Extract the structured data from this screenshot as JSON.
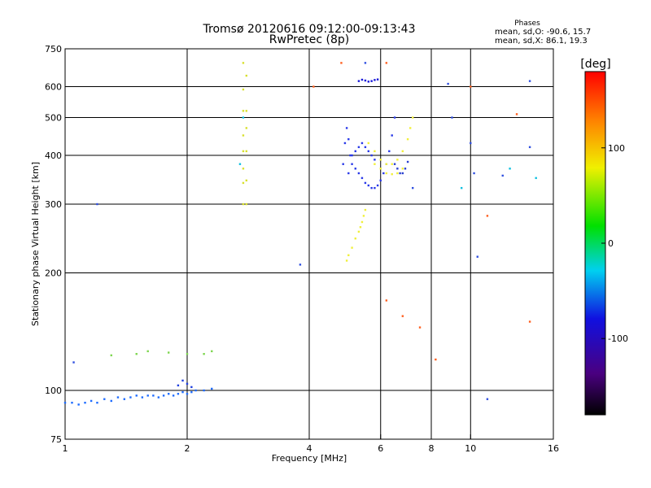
{
  "chart_data": {
    "type": "scatter",
    "title": "Tromsø 20120616 09:12:00-09:13:43",
    "subtitle": "RwPretec (8p)",
    "phase_info": {
      "heading": "Phases",
      "line_o": "mean, sd,O: -90.6, 15.7",
      "line_x": "mean, sd,X:  86.1, 19.3"
    },
    "xlabel": "Frequency [MHz]",
    "ylabel": "Stationary phase Virtual Height [km]",
    "x_scale": "log",
    "y_scale": "log",
    "xlim": [
      1,
      16
    ],
    "ylim": [
      75,
      750
    ],
    "x_ticks": [
      1,
      2,
      4,
      6,
      8,
      10,
      16
    ],
    "x_tick_labels": [
      "1",
      "2",
      "4",
      "6",
      "8",
      "10",
      "16"
    ],
    "x_grid": [
      2,
      4,
      6,
      8,
      10
    ],
    "y_ticks": [
      75,
      100,
      200,
      300,
      400,
      500,
      600,
      750
    ],
    "y_tick_labels": [
      "75",
      "100",
      "200",
      "300",
      "400",
      "500",
      "600",
      "750"
    ],
    "y_grid": [
      100,
      200,
      300,
      400,
      500,
      600
    ],
    "grid": true,
    "colorbar": {
      "label": "[deg]",
      "range": [
        -180,
        180
      ],
      "ticks": [
        100,
        0,
        -100
      ],
      "tick_labels": [
        "100",
        "0",
        "-100"
      ]
    },
    "series": [
      {
        "color": "#1e6cff",
        "points": [
          [
            1.0,
            93
          ],
          [
            1.04,
            93
          ],
          [
            1.08,
            92
          ],
          [
            1.12,
            93
          ],
          [
            1.16,
            94
          ],
          [
            1.2,
            93
          ],
          [
            1.25,
            95
          ],
          [
            1.3,
            94
          ],
          [
            1.35,
            96
          ],
          [
            1.4,
            95
          ],
          [
            1.45,
            96
          ],
          [
            1.5,
            97
          ],
          [
            1.55,
            96
          ],
          [
            1.6,
            97
          ],
          [
            1.65,
            97
          ],
          [
            1.7,
            96
          ],
          [
            1.75,
            97
          ],
          [
            1.8,
            98
          ],
          [
            1.85,
            97
          ],
          [
            1.9,
            98
          ],
          [
            1.95,
            99
          ],
          [
            2.0,
            98
          ],
          [
            2.05,
            99
          ],
          [
            2.1,
            100
          ],
          [
            2.2,
            100
          ],
          [
            2.3,
            101
          ]
        ]
      },
      {
        "color": "#2040e0",
        "points": [
          [
            1.9,
            103
          ],
          [
            1.95,
            106
          ],
          [
            2.0,
            104
          ],
          [
            2.05,
            102
          ]
        ]
      },
      {
        "color": "#2a3ae8",
        "points": [
          [
            4.85,
            380
          ],
          [
            4.9,
            430
          ],
          [
            4.95,
            470
          ],
          [
            5.0,
            440
          ],
          [
            5.05,
            400
          ],
          [
            5.1,
            380
          ],
          [
            5.2,
            370
          ],
          [
            5.3,
            360
          ],
          [
            5.4,
            350
          ],
          [
            5.5,
            340
          ],
          [
            5.6,
            335
          ],
          [
            5.7,
            330
          ],
          [
            5.8,
            330
          ],
          [
            5.9,
            335
          ],
          [
            6.0,
            345
          ],
          [
            6.1,
            360
          ],
          [
            6.2,
            380
          ],
          [
            6.3,
            410
          ],
          [
            6.4,
            450
          ],
          [
            6.5,
            500
          ],
          [
            5.0,
            360
          ],
          [
            5.1,
            400
          ],
          [
            5.2,
            410
          ],
          [
            5.3,
            420
          ],
          [
            5.4,
            430
          ],
          [
            5.5,
            420
          ],
          [
            5.6,
            410
          ],
          [
            5.7,
            400
          ],
          [
            5.8,
            390
          ]
        ]
      },
      {
        "color": "#1818d8",
        "points": [
          [
            5.3,
            620
          ],
          [
            5.4,
            625
          ],
          [
            5.5,
            622
          ],
          [
            5.6,
            618
          ],
          [
            5.7,
            620
          ],
          [
            5.8,
            624
          ],
          [
            5.9,
            626
          ]
        ]
      },
      {
        "color": "#2a40d0",
        "points": [
          [
            6.5,
            380
          ],
          [
            6.6,
            370
          ],
          [
            6.7,
            360
          ],
          [
            6.8,
            360
          ],
          [
            6.9,
            370
          ],
          [
            7.0,
            385
          ]
        ]
      },
      {
        "color": "#f2f03a",
        "points": [
          [
            5.6,
            430
          ],
          [
            5.8,
            410
          ],
          [
            6.0,
            390
          ],
          [
            6.2,
            380
          ],
          [
            6.4,
            380
          ],
          [
            6.6,
            390
          ],
          [
            6.8,
            410
          ],
          [
            7.0,
            440
          ],
          [
            7.1,
            470
          ],
          [
            7.2,
            500
          ],
          [
            5.8,
            380
          ],
          [
            6.0,
            370
          ],
          [
            6.2,
            360
          ],
          [
            6.4,
            358
          ],
          [
            6.6,
            360
          ],
          [
            6.8,
            370
          ]
        ]
      },
      {
        "color": "#f0f03a",
        "points": [
          [
            4.95,
            215
          ],
          [
            5.0,
            222
          ],
          [
            5.1,
            232
          ],
          [
            5.2,
            245
          ],
          [
            5.3,
            255
          ],
          [
            5.35,
            262
          ],
          [
            5.4,
            270
          ],
          [
            5.45,
            280
          ],
          [
            5.5,
            290
          ]
        ]
      },
      {
        "color": "#d8e030",
        "points": [
          [
            2.75,
            690
          ],
          [
            2.75,
            590
          ],
          [
            2.75,
            520
          ],
          [
            2.75,
            450
          ],
          [
            2.75,
            410
          ],
          [
            2.75,
            370
          ],
          [
            2.75,
            340
          ],
          [
            2.75,
            300
          ],
          [
            2.8,
            640
          ],
          [
            2.8,
            520
          ],
          [
            2.8,
            470
          ],
          [
            2.8,
            410
          ],
          [
            2.8,
            345
          ],
          [
            2.8,
            300
          ]
        ]
      },
      {
        "color": "#7ed650",
        "points": [
          [
            1.3,
            123
          ],
          [
            1.5,
            124
          ],
          [
            1.6,
            126
          ],
          [
            1.8,
            125
          ],
          [
            2.0,
            124
          ],
          [
            2.2,
            124
          ],
          [
            2.3,
            126
          ]
        ]
      },
      {
        "color": "#ff6020",
        "points": [
          [
            4.1,
            600
          ],
          [
            4.8,
            690
          ],
          [
            6.2,
            690
          ],
          [
            6.2,
            170
          ],
          [
            6.8,
            155
          ],
          [
            7.5,
            145
          ],
          [
            8.2,
            120
          ],
          [
            10.0,
            600
          ],
          [
            11.0,
            280
          ],
          [
            13.0,
            510
          ],
          [
            14.0,
            150
          ]
        ]
      },
      {
        "color": "#3050e0",
        "points": [
          [
            1.05,
            118
          ],
          [
            1.2,
            300
          ],
          [
            3.8,
            210
          ],
          [
            5.5,
            690
          ],
          [
            7.2,
            330
          ],
          [
            8.8,
            610
          ],
          [
            9.0,
            500
          ],
          [
            10.0,
            430
          ],
          [
            10.2,
            360
          ],
          [
            10.4,
            220
          ],
          [
            12.0,
            355
          ],
          [
            14.0,
            420
          ],
          [
            14.0,
            620
          ],
          [
            11.0,
            95
          ]
        ]
      },
      {
        "color": "#10c0e0",
        "points": [
          [
            2.7,
            380
          ],
          [
            2.75,
            500
          ],
          [
            9.5,
            330
          ],
          [
            12.5,
            370
          ],
          [
            14.5,
            350
          ]
        ]
      }
    ]
  }
}
